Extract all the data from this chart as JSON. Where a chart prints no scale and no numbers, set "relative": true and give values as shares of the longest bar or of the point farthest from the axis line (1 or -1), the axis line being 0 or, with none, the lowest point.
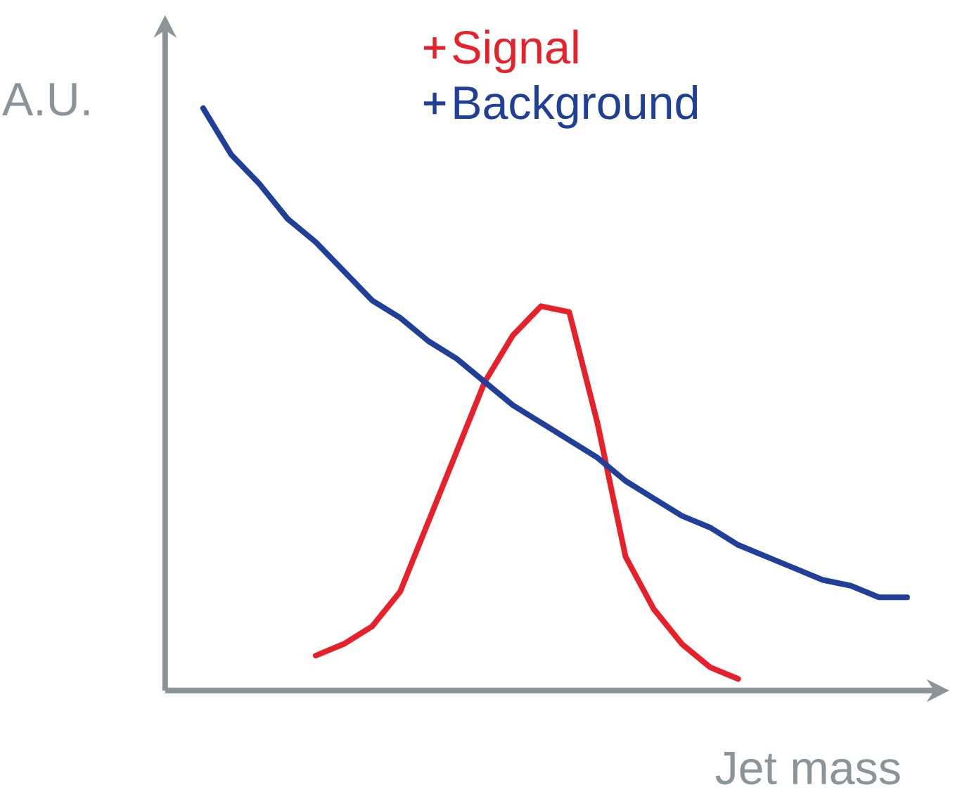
{
  "chart_data": {
    "type": "line",
    "relative": true,
    "xlabel": "Jet mass",
    "ylabel": "A.U.",
    "legend": "top",
    "categories": [
      null,
      null,
      null,
      null,
      null,
      null,
      null,
      null,
      null,
      null,
      null,
      null,
      null,
      null,
      null,
      null,
      null,
      null,
      null,
      null,
      null,
      null,
      null,
      null,
      null,
      null
    ],
    "series": [
      {
        "name": "Signal",
        "color": "#e8202a",
        "values": [
          null,
          null,
          null,
          null,
          0.06,
          0.08,
          0.11,
          0.17,
          0.29,
          0.41,
          0.53,
          0.61,
          0.66,
          0.65,
          0.46,
          0.23,
          0.14,
          0.08,
          0.04,
          0.02,
          null,
          null,
          null,
          null,
          null,
          null
        ]
      },
      {
        "name": "Background",
        "color": "#1f3f99",
        "values": [
          1,
          0.92,
          0.87,
          0.81,
          0.77,
          0.72,
          0.67,
          0.64,
          0.6,
          0.57,
          0.53,
          0.49,
          0.46,
          0.43,
          0.4,
          0.36,
          0.33,
          0.3,
          0.28,
          0.25,
          0.23,
          0.21,
          0.19,
          0.18,
          0.16,
          0.16
        ]
      }
    ]
  }
}
